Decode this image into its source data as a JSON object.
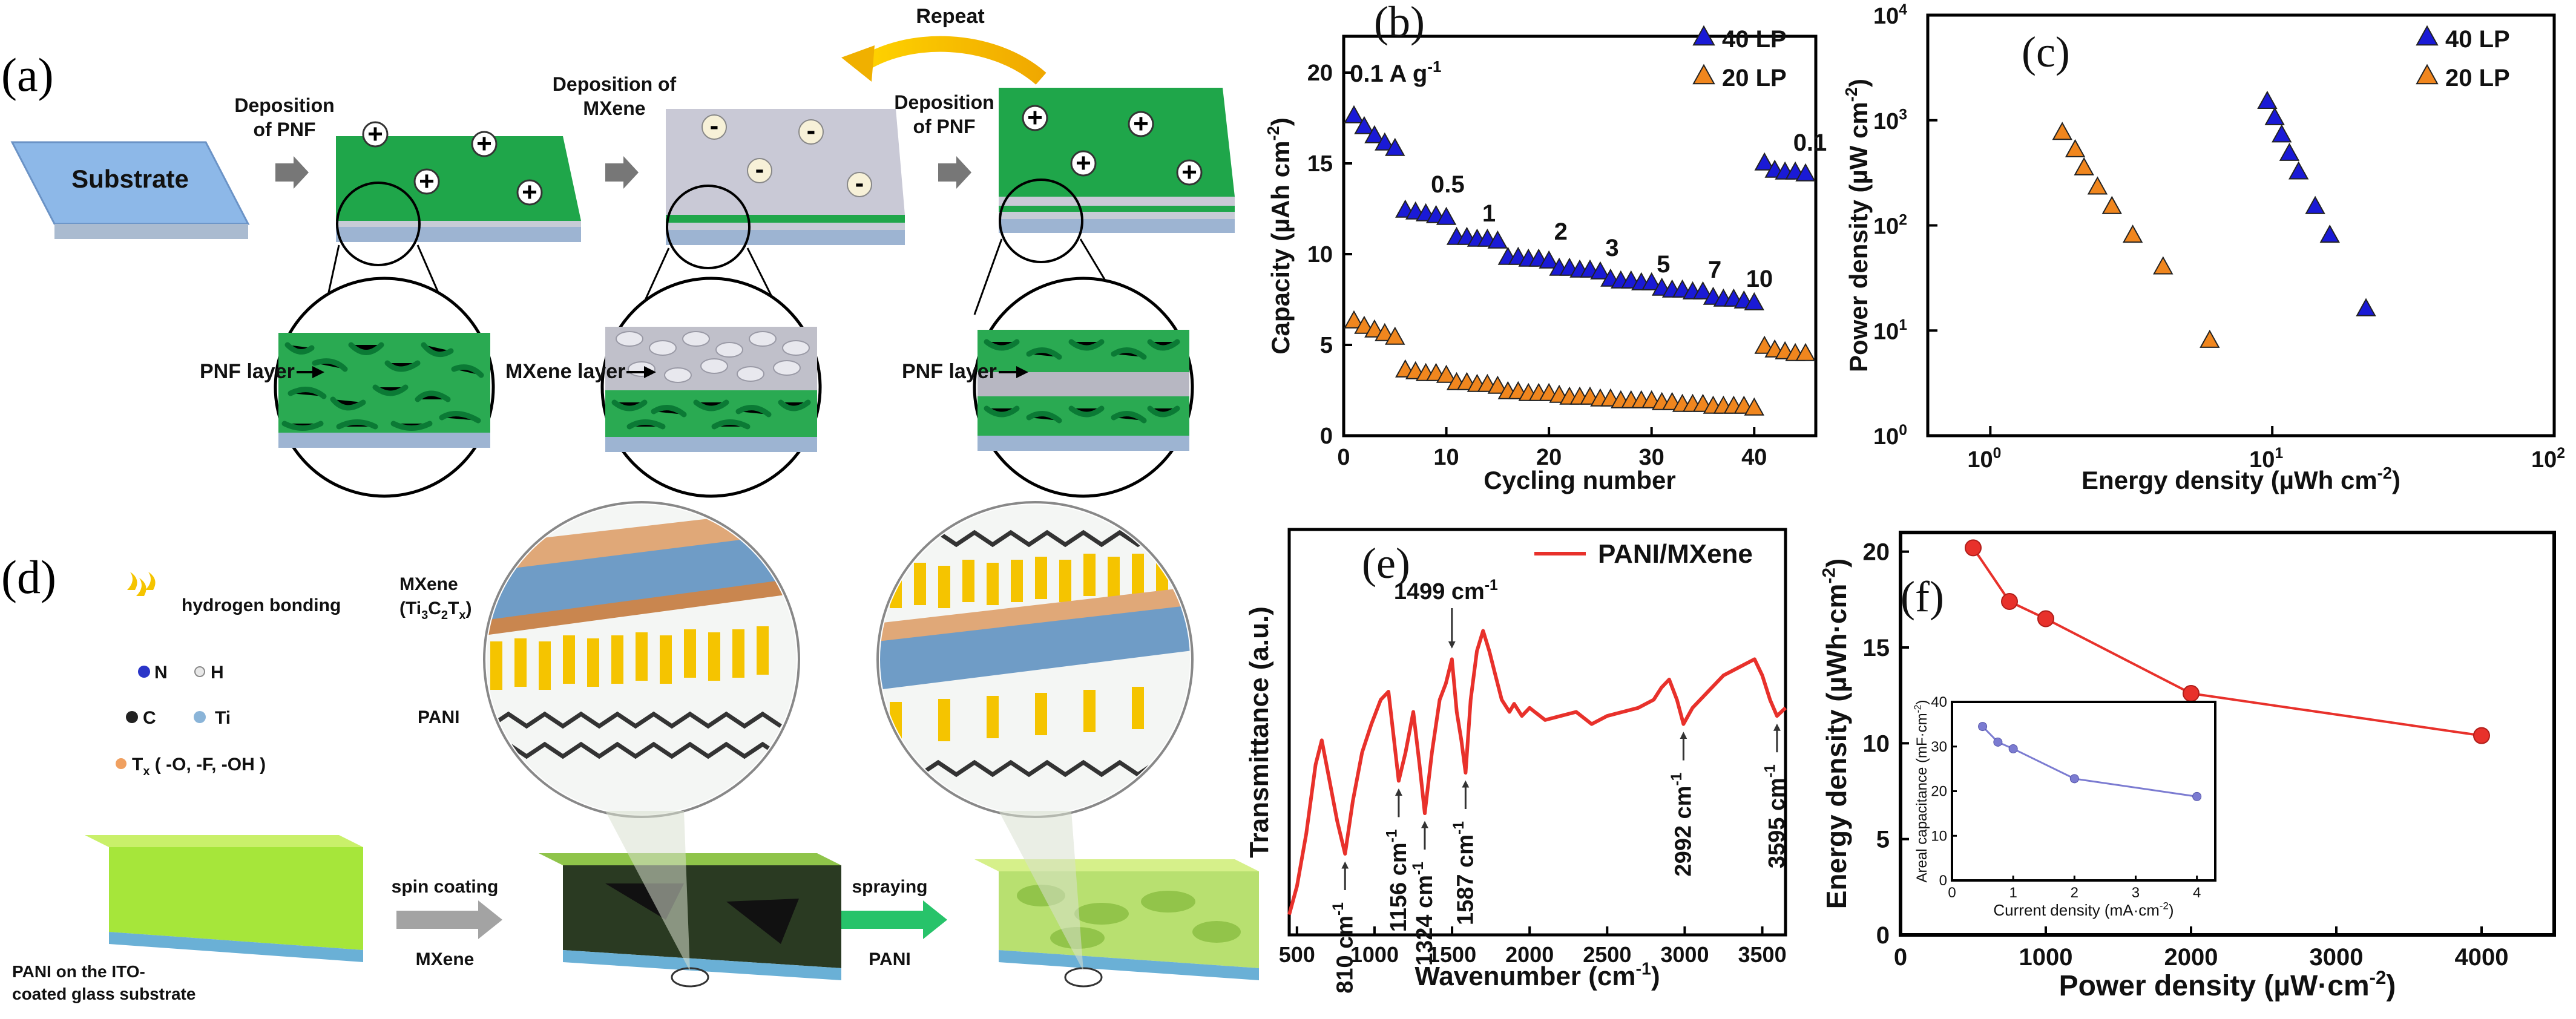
{
  "figure": {
    "panel_a": {
      "label": "(a)",
      "substrate": "Substrate",
      "step1": [
        "Deposition",
        "of PNF"
      ],
      "step2": [
        "Deposition of",
        "MXene"
      ],
      "step3": [
        "Deposition",
        "of PNF"
      ],
      "repeat": "Repeat",
      "layer1": "PNF layer",
      "layer2": "MXene layer",
      "layer3": "PNF layer",
      "plus": "+",
      "minus": "-",
      "colors": {
        "pnf": "#1fa64a",
        "substrate": "#8db8e8",
        "mxene": "#c9c9d6",
        "arrow": "#f2c200"
      }
    },
    "panel_d": {
      "label": "(d)",
      "legend_hbond": "hydrogen bonding",
      "legend_N": "N",
      "legend_H": "H",
      "legend_C": "C",
      "legend_Ti": "Ti",
      "legend_Tx": "T",
      "legend_Tx_sub": "x",
      "legend_Tx_rest": " ( -O, -F, -OH )",
      "mxene_label": "MXene",
      "mxene_formula": "(Ti",
      "mxene_formula_sub1": "3",
      "mxene_formula_mid": "C",
      "mxene_formula_sub2": "2",
      "mxene_formula_end": "T",
      "mxene_formula_sub3": "x",
      "mxene_formula_close": ")",
      "pani_label": "PANI",
      "substrate_label": [
        "PANI on the ITO-",
        "coated glass substrate"
      ],
      "step1_top": "spin coating",
      "step1_bottom": "MXene",
      "step2_top": "spraying",
      "step2_bottom": "PANI"
    }
  },
  "chart_data": [
    {
      "type": "scatter",
      "panel": "(b)",
      "xlabel": "Cycling number",
      "ylabel": "Capacity (µAh cm",
      "ylabel_sup": "-2",
      "ylabel_close": ")",
      "xlim": [
        0,
        46
      ],
      "ylim": [
        0,
        22
      ],
      "xticks": [
        0,
        10,
        20,
        30,
        40
      ],
      "yticks": [
        0,
        5,
        10,
        15,
        20
      ],
      "rate_labels": [
        {
          "text": "0.1 A g",
          "sup": "-1",
          "x": 0.6,
          "y": 19.5
        },
        {
          "text": "0.5",
          "sup": "",
          "x": 8.5,
          "y": 13.4
        },
        {
          "text": "1",
          "sup": "",
          "x": 13.5,
          "y": 11.8
        },
        {
          "text": "2",
          "sup": "",
          "x": 20.5,
          "y": 10.8
        },
        {
          "text": "3",
          "sup": "",
          "x": 25.5,
          "y": 9.9
        },
        {
          "text": "5",
          "sup": "",
          "x": 30.5,
          "y": 9.0
        },
        {
          "text": "7",
          "sup": "",
          "x": 35.5,
          "y": 8.7
        },
        {
          "text": "10",
          "sup": "",
          "x": 39.2,
          "y": 8.2
        },
        {
          "text": "0.1",
          "sup": "",
          "x": 43.8,
          "y": 15.7
        }
      ],
      "series": [
        {
          "name": "40 LP",
          "color": "#1a1ad6",
          "x": [
            1,
            2,
            3,
            4,
            5,
            6,
            7,
            8,
            9,
            10,
            11,
            12,
            13,
            14,
            15,
            16,
            17,
            18,
            19,
            20,
            21,
            22,
            23,
            24,
            25,
            26,
            27,
            28,
            29,
            30,
            31,
            32,
            33,
            34,
            35,
            36,
            37,
            38,
            39,
            40,
            41,
            42,
            43,
            44,
            45
          ],
          "y": [
            17.6,
            17.0,
            16.5,
            16.1,
            15.8,
            12.4,
            12.3,
            12.2,
            12.1,
            12.0,
            10.9,
            10.9,
            10.8,
            10.8,
            10.7,
            9.8,
            9.8,
            9.7,
            9.7,
            9.6,
            9.2,
            9.2,
            9.1,
            9.1,
            9.0,
            8.6,
            8.5,
            8.5,
            8.4,
            8.4,
            8.1,
            8.0,
            8.0,
            7.9,
            7.9,
            7.6,
            7.5,
            7.5,
            7.4,
            7.3,
            15.0,
            14.6,
            14.5,
            14.5,
            14.4
          ]
        },
        {
          "name": "20 LP",
          "color": "#f0861e",
          "x": [
            1,
            2,
            3,
            4,
            5,
            6,
            7,
            8,
            9,
            10,
            11,
            12,
            13,
            14,
            15,
            16,
            17,
            18,
            19,
            20,
            21,
            22,
            23,
            24,
            25,
            26,
            27,
            28,
            29,
            30,
            31,
            32,
            33,
            34,
            35,
            36,
            37,
            38,
            39,
            40,
            41,
            42,
            43,
            44,
            45
          ],
          "y": [
            6.3,
            6.0,
            5.8,
            5.6,
            5.4,
            3.6,
            3.5,
            3.4,
            3.4,
            3.3,
            2.9,
            2.9,
            2.8,
            2.8,
            2.7,
            2.4,
            2.4,
            2.3,
            2.3,
            2.3,
            2.2,
            2.1,
            2.1,
            2.1,
            2.0,
            2.0,
            1.9,
            1.9,
            1.9,
            1.9,
            1.8,
            1.8,
            1.7,
            1.7,
            1.7,
            1.6,
            1.6,
            1.6,
            1.6,
            1.5,
            4.9,
            4.7,
            4.6,
            4.5,
            4.5
          ]
        }
      ]
    },
    {
      "type": "scatter",
      "panel": "(c)",
      "scale": "log-log",
      "xlabel": "Energy density (µWh cm",
      "xlabel_sup": "-2",
      "xlabel_close": ")",
      "ylabel": "Power density (µW cm",
      "ylabel_sup": "-2",
      "ylabel_close": ")",
      "xlim": [
        0.6,
        100
      ],
      "ylim": [
        1,
        10000
      ],
      "xticks": [
        {
          "v": 1,
          "base": "10",
          "exp": "0"
        },
        {
          "v": 10,
          "base": "10",
          "exp": "1"
        },
        {
          "v": 100,
          "base": "10",
          "exp": "2"
        }
      ],
      "yticks": [
        {
          "v": 1,
          "base": "10",
          "exp": "0"
        },
        {
          "v": 10,
          "base": "10",
          "exp": "1"
        },
        {
          "v": 100,
          "base": "10",
          "exp": "2"
        },
        {
          "v": 1000,
          "base": "10",
          "exp": "3"
        },
        {
          "v": 10000,
          "base": "10",
          "exp": "4"
        }
      ],
      "series": [
        {
          "name": "40 LP",
          "color": "#1a1ad6",
          "x": [
            9.6,
            10.2,
            10.8,
            11.5,
            12.4,
            14.2,
            16.0,
            21.5
          ],
          "y": [
            1500,
            1050,
            720,
            480,
            320,
            150,
            80,
            16
          ]
        },
        {
          "name": "20 LP",
          "color": "#f0861e",
          "x": [
            1.8,
            2.0,
            2.15,
            2.4,
            2.7,
            3.2,
            4.1,
            6.0
          ],
          "y": [
            760,
            520,
            350,
            230,
            150,
            80,
            40,
            8
          ]
        }
      ]
    },
    {
      "type": "line",
      "panel": "(e)",
      "xlabel": "Wavenumber (cm",
      "xlabel_sup": "-1",
      "xlabel_close": ")",
      "ylabel": "Transmittance (a.u.)",
      "xlim": [
        450,
        3650
      ],
      "ylim": [
        0,
        1
      ],
      "xticks": [
        500,
        1000,
        1500,
        2000,
        2500,
        3000,
        3500
      ],
      "legend": "PANI/MXene",
      "color": "#e8312b",
      "x": [
        450,
        500,
        560,
        620,
        660,
        700,
        760,
        810,
        860,
        920,
        980,
        1040,
        1090,
        1120,
        1156,
        1200,
        1250,
        1290,
        1324,
        1370,
        1420,
        1460,
        1499,
        1530,
        1560,
        1587,
        1620,
        1660,
        1700,
        1740,
        1780,
        1820,
        1870,
        1900,
        1950,
        2000,
        2100,
        2200,
        2300,
        2400,
        2500,
        2600,
        2700,
        2800,
        2850,
        2900,
        2950,
        2992,
        3050,
        3150,
        3250,
        3350,
        3450,
        3500,
        3550,
        3595,
        3650
      ],
      "y": [
        0.05,
        0.12,
        0.25,
        0.42,
        0.48,
        0.4,
        0.28,
        0.2,
        0.33,
        0.45,
        0.52,
        0.58,
        0.6,
        0.5,
        0.38,
        0.45,
        0.55,
        0.42,
        0.3,
        0.45,
        0.58,
        0.62,
        0.68,
        0.55,
        0.48,
        0.4,
        0.58,
        0.7,
        0.75,
        0.7,
        0.64,
        0.58,
        0.55,
        0.57,
        0.54,
        0.56,
        0.53,
        0.54,
        0.55,
        0.52,
        0.54,
        0.55,
        0.56,
        0.58,
        0.61,
        0.63,
        0.58,
        0.52,
        0.56,
        0.6,
        0.64,
        0.66,
        0.68,
        0.64,
        0.58,
        0.54,
        0.56
      ],
      "annotations": [
        {
          "text": "1499 cm",
          "sup": "-1",
          "x": 1499,
          "placement": "above"
        },
        {
          "text": "810 cm",
          "sup": "-1",
          "x": 810,
          "placement": "below"
        },
        {
          "text": "1156 cm",
          "sup": "-1",
          "x": 1156,
          "placement": "below"
        },
        {
          "text": "1324 cm",
          "sup": "-1",
          "x": 1324,
          "placement": "below"
        },
        {
          "text": "1587 cm",
          "sup": "-1",
          "x": 1587,
          "placement": "below"
        },
        {
          "text": "2992 cm",
          "sup": "-1",
          "x": 2992,
          "placement": "below"
        },
        {
          "text": "3595 cm",
          "sup": "-1",
          "x": 3595,
          "placement": "below"
        }
      ]
    },
    {
      "type": "line",
      "panel": "(f)",
      "xlabel": "Power density (µW·cm",
      "xlabel_sup": "-2",
      "xlabel_close": ")",
      "ylabel": "Energy density (µWh·cm",
      "ylabel_sup": "-2",
      "ylabel_close": ")",
      "xlim": [
        0,
        4500
      ],
      "ylim": [
        0,
        21
      ],
      "xticks": [
        0,
        1000,
        2000,
        3000,
        4000
      ],
      "yticks": [
        0,
        5,
        10,
        15,
        20
      ],
      "color": "#e8312b",
      "x": [
        500,
        750,
        1000,
        2000,
        4000
      ],
      "y": [
        20.2,
        17.4,
        16.5,
        12.6,
        10.4
      ],
      "inset": {
        "type": "line",
        "xlabel": "Current density (mA·cm",
        "xlabel_sup": "-2",
        "xlabel_close": ")",
        "ylabel": "Areal capacitance (mF·cm",
        "ylabel_sup": "-2",
        "ylabel_close": ")",
        "xlim": [
          0,
          4.3
        ],
        "ylim": [
          0,
          40
        ],
        "xticks": [
          0,
          1,
          2,
          3,
          4
        ],
        "yticks": [
          0,
          10,
          20,
          30,
          40
        ],
        "color": "#7b7bd1",
        "x": [
          0.5,
          0.75,
          1.0,
          2.0,
          4.0
        ],
        "y": [
          34.5,
          31.0,
          29.5,
          22.8,
          18.8
        ]
      }
    }
  ]
}
